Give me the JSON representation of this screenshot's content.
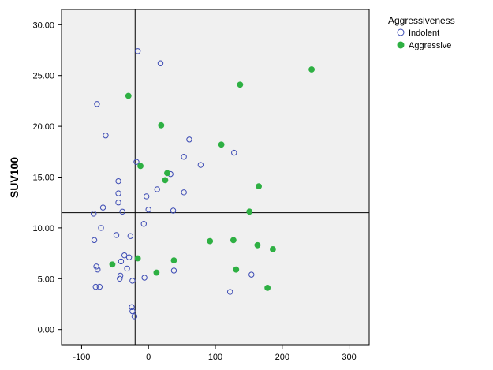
{
  "chart_data": {
    "type": "scatter",
    "title": "",
    "xlabel": "",
    "ylabel": "SUV100",
    "xlim": [
      -130,
      330
    ],
    "ylim": [
      -1.5,
      31.5
    ],
    "x_ticks": [
      "-100",
      "0",
      "100",
      "200",
      "300"
    ],
    "x_tick_values": [
      -100,
      0,
      100,
      200,
      300
    ],
    "y_ticks": [
      "0.00",
      "5.00",
      "10.00",
      "15.00",
      "20.00",
      "25.00",
      "30.00"
    ],
    "y_tick_values": [
      0,
      5,
      10,
      15,
      20,
      25,
      30
    ],
    "reference_lines": {
      "x": -20,
      "y": 11.5
    },
    "grid": false,
    "plot_background": "#f0f0f0",
    "legend": {
      "title": "Aggressiveness",
      "position": "top-right-outside",
      "entries": [
        {
          "label": "Indolent",
          "marker": "open-circle",
          "color": "#3c4bb4"
        },
        {
          "label": "Aggressive",
          "marker": "filled-circle",
          "color": "#2eb043"
        }
      ]
    },
    "series": [
      {
        "name": "Indolent",
        "marker": "open-circle",
        "color": "#3c4bb4",
        "points": [
          [
            -16,
            27.4
          ],
          [
            18,
            26.2
          ],
          [
            -77,
            22.2
          ],
          [
            -64,
            19.1
          ],
          [
            61,
            18.7
          ],
          [
            128,
            17.4
          ],
          [
            53,
            17.0
          ],
          [
            78,
            16.2
          ],
          [
            -18,
            16.5
          ],
          [
            33,
            15.3
          ],
          [
            -45,
            14.6
          ],
          [
            13,
            13.8
          ],
          [
            -45,
            13.4
          ],
          [
            53,
            13.5
          ],
          [
            -3,
            13.1
          ],
          [
            -45,
            12.5
          ],
          [
            -68,
            12.0
          ],
          [
            0,
            11.8
          ],
          [
            37,
            11.7
          ],
          [
            -39,
            11.6
          ],
          [
            -82,
            11.4
          ],
          [
            -7,
            10.4
          ],
          [
            -71,
            10.0
          ],
          [
            -81,
            8.8
          ],
          [
            -48,
            9.3
          ],
          [
            -27,
            9.2
          ],
          [
            -36,
            7.3
          ],
          [
            -29,
            7.1
          ],
          [
            -41,
            6.7
          ],
          [
            -78,
            6.2
          ],
          [
            -76,
            5.9
          ],
          [
            -32,
            6.0
          ],
          [
            -42,
            5.3
          ],
          [
            -43,
            5.0
          ],
          [
            -6,
            5.1
          ],
          [
            38,
            5.8
          ],
          [
            154,
            5.4
          ],
          [
            -24,
            4.8
          ],
          [
            -79,
            4.2
          ],
          [
            -73,
            4.2
          ],
          [
            122,
            3.7
          ],
          [
            -25,
            2.2
          ],
          [
            -24,
            1.8
          ],
          [
            -21,
            1.3
          ]
        ]
      },
      {
        "name": "Aggressive",
        "marker": "filled-circle",
        "color": "#2eb043",
        "points": [
          [
            244,
            25.6
          ],
          [
            137,
            24.1
          ],
          [
            -30,
            23.0
          ],
          [
            19,
            20.1
          ],
          [
            109,
            18.2
          ],
          [
            -12,
            16.1
          ],
          [
            28,
            15.4
          ],
          [
            25,
            14.7
          ],
          [
            165,
            14.1
          ],
          [
            151,
            11.6
          ],
          [
            92,
            8.7
          ],
          [
            127,
            8.8
          ],
          [
            163,
            8.3
          ],
          [
            186,
            7.9
          ],
          [
            -16,
            7.0
          ],
          [
            38,
            6.8
          ],
          [
            -54,
            6.4
          ],
          [
            131,
            5.9
          ],
          [
            12,
            5.6
          ],
          [
            178,
            4.1
          ]
        ]
      }
    ]
  }
}
